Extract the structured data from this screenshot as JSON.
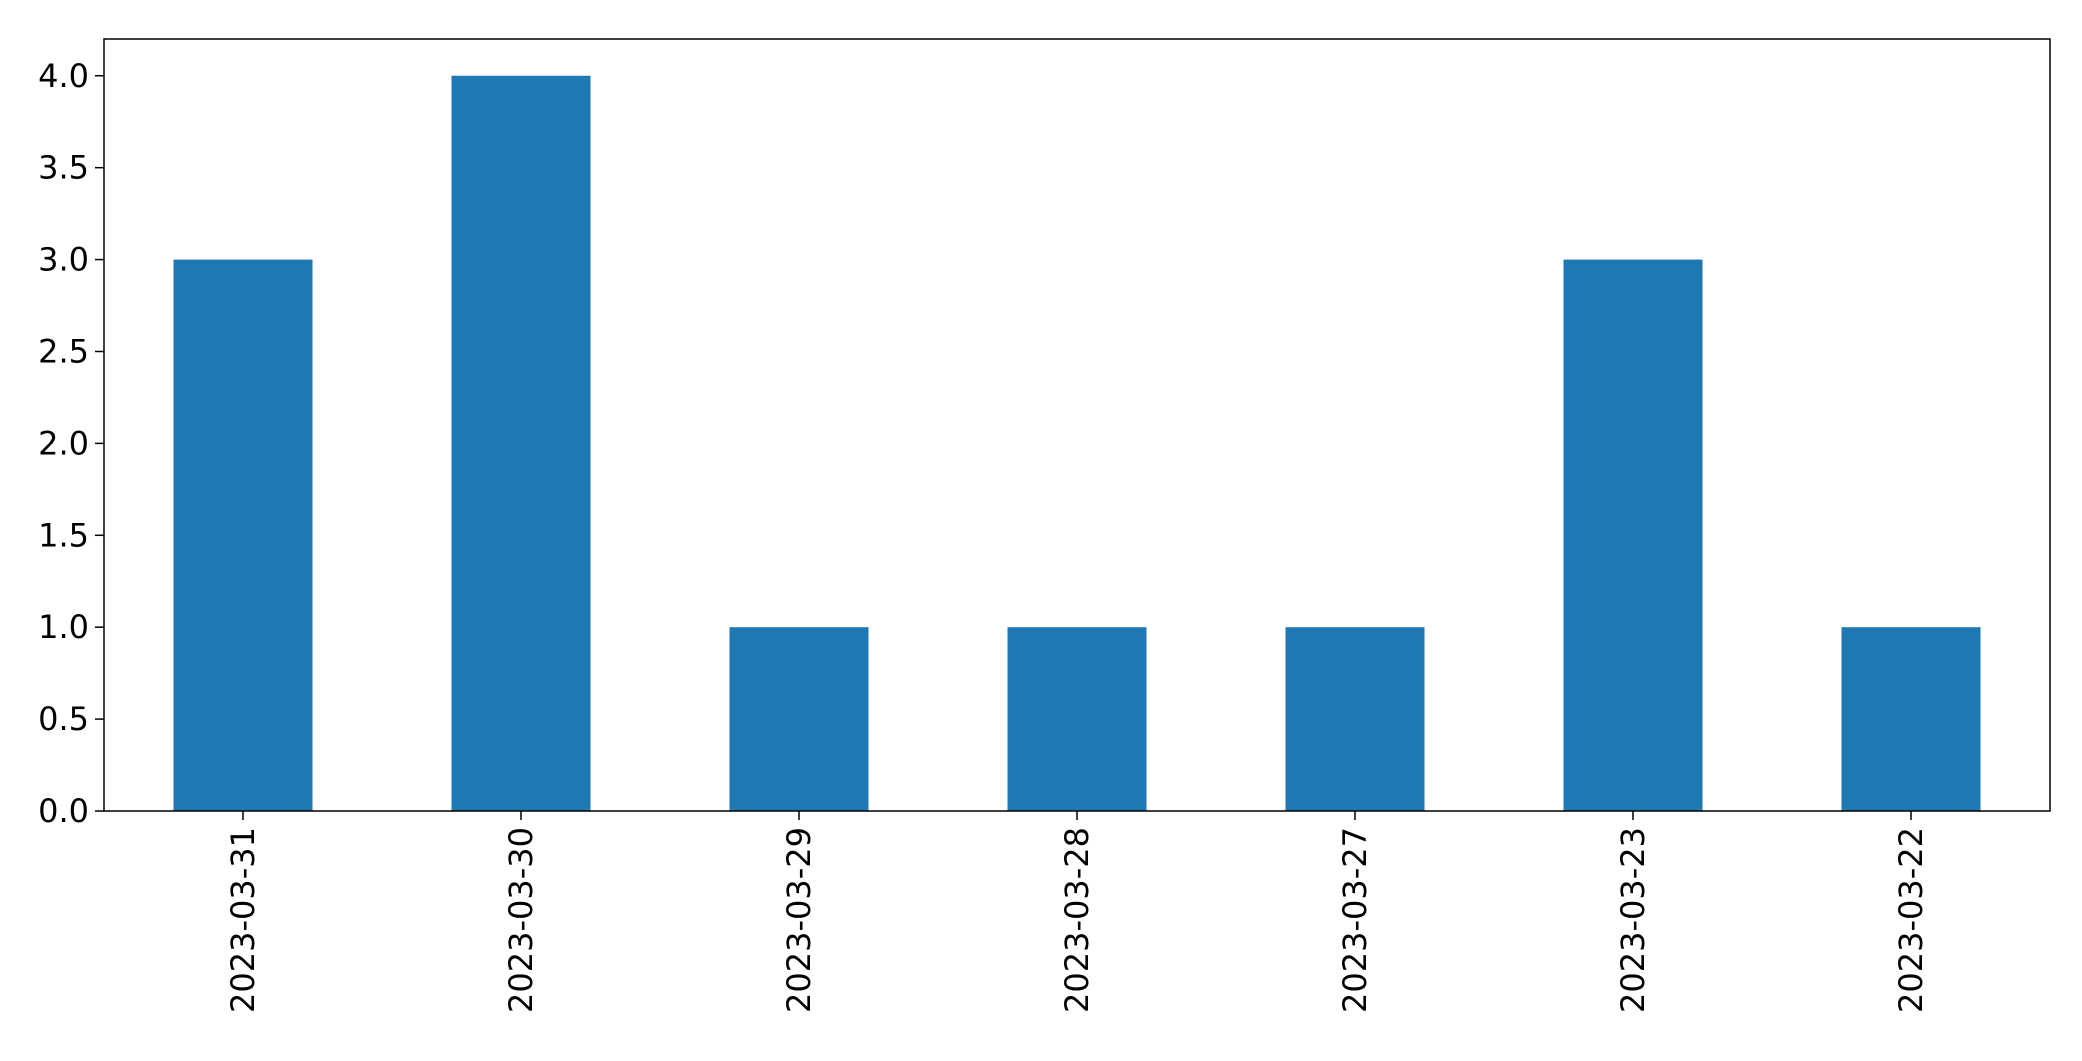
{
  "chart_data": {
    "type": "bar",
    "title": "",
    "xlabel": "",
    "ylabel": "",
    "categories": [
      "2023-03-31",
      "2023-03-30",
      "2023-03-29",
      "2023-03-28",
      "2023-03-27",
      "2023-03-23",
      "2023-03-22"
    ],
    "values": [
      3,
      4,
      1,
      1,
      1,
      3,
      1
    ],
    "ylim": [
      0,
      4.2
    ],
    "yticks": [
      "0.0",
      "0.5",
      "1.0",
      "1.5",
      "2.0",
      "2.5",
      "3.0",
      "3.5",
      "4.0"
    ],
    "x_tick_rotation": "vertical",
    "grid": false,
    "legend": "none",
    "bar_color": "#1f77b4"
  }
}
